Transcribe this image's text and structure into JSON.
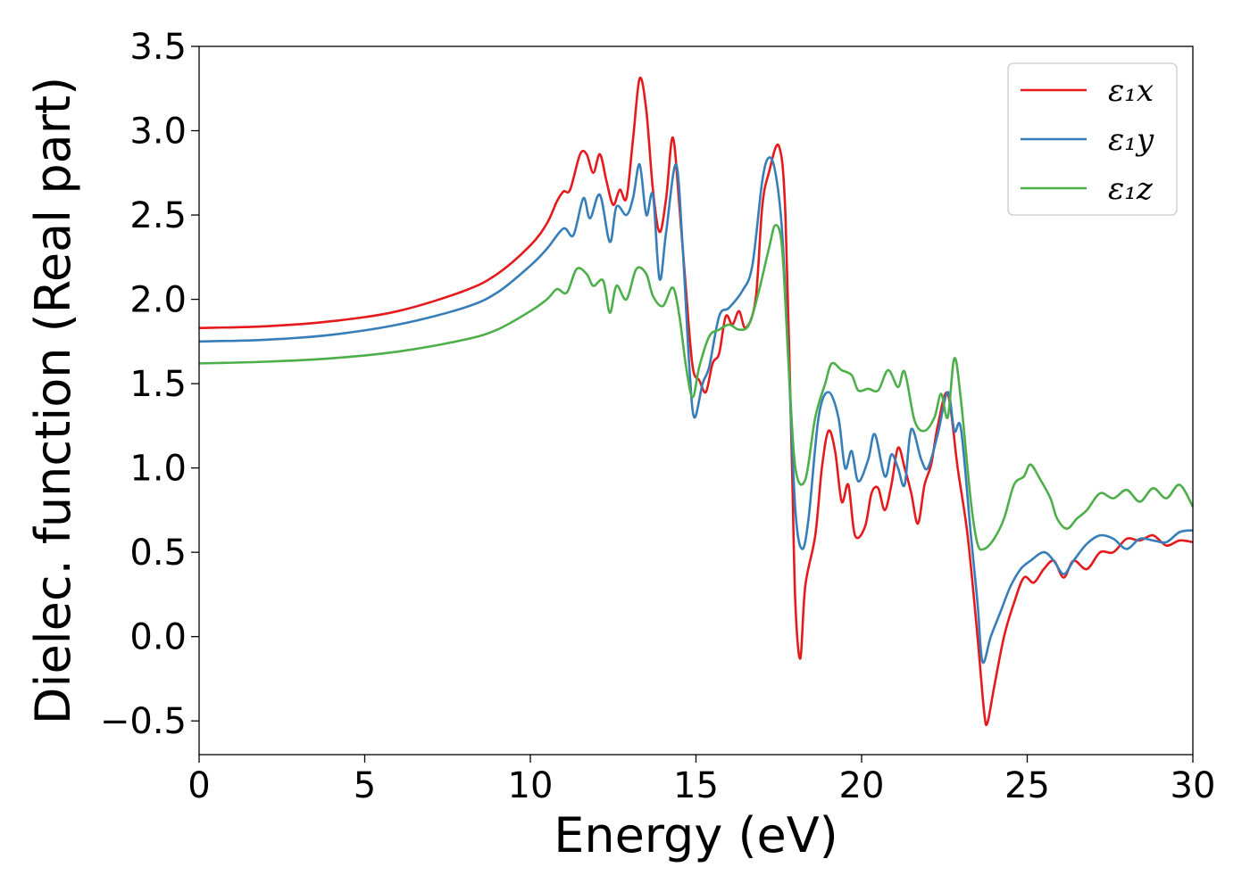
{
  "chart_data": {
    "type": "line",
    "title": "",
    "xlabel": "Energy (eV)",
    "ylabel": "Dielec. function (Real part)",
    "xlim": [
      0,
      30
    ],
    "ylim": [
      -0.7,
      3.5
    ],
    "xticks": [
      0,
      5,
      10,
      15,
      20,
      25,
      30
    ],
    "xtick_labels": [
      "0",
      "5",
      "10",
      "15",
      "20",
      "25",
      "30"
    ],
    "yticks": [
      -0.5,
      0.0,
      0.5,
      1.0,
      1.5,
      2.0,
      2.5,
      3.0,
      3.5
    ],
    "ytick_labels": [
      "−0.5",
      "0.0",
      "0.5",
      "1.0",
      "1.5",
      "2.0",
      "2.5",
      "3.0",
      "3.5"
    ],
    "grid": false,
    "legend_position": "top-right",
    "series": [
      {
        "name": "ε₁x",
        "color": "#e41a1c",
        "points": [
          [
            0,
            1.83
          ],
          [
            2,
            1.84
          ],
          [
            4,
            1.87
          ],
          [
            6,
            1.93
          ],
          [
            8,
            2.05
          ],
          [
            9,
            2.15
          ],
          [
            10,
            2.32
          ],
          [
            10.5,
            2.45
          ],
          [
            10.8,
            2.58
          ],
          [
            11,
            2.64
          ],
          [
            11.2,
            2.65
          ],
          [
            11.5,
            2.86
          ],
          [
            11.7,
            2.86
          ],
          [
            11.9,
            2.75
          ],
          [
            12.1,
            2.86
          ],
          [
            12.3,
            2.7
          ],
          [
            12.5,
            2.56
          ],
          [
            12.7,
            2.65
          ],
          [
            12.9,
            2.6
          ],
          [
            13.1,
            2.95
          ],
          [
            13.3,
            3.31
          ],
          [
            13.5,
            3.12
          ],
          [
            13.7,
            2.65
          ],
          [
            13.9,
            2.4
          ],
          [
            14.1,
            2.6
          ],
          [
            14.3,
            2.96
          ],
          [
            14.5,
            2.55
          ],
          [
            14.7,
            2.05
          ],
          [
            14.9,
            1.6
          ],
          [
            15.1,
            1.52
          ],
          [
            15.3,
            1.45
          ],
          [
            15.5,
            1.62
          ],
          [
            15.7,
            1.68
          ],
          [
            15.9,
            1.9
          ],
          [
            16.1,
            1.85
          ],
          [
            16.3,
            1.93
          ],
          [
            16.5,
            1.83
          ],
          [
            16.8,
            2.0
          ],
          [
            17.0,
            2.55
          ],
          [
            17.2,
            2.75
          ],
          [
            17.5,
            2.91
          ],
          [
            17.7,
            2.5
          ],
          [
            17.9,
            1.0
          ],
          [
            18.0,
            0.2
          ],
          [
            18.15,
            -0.13
          ],
          [
            18.3,
            0.3
          ],
          [
            18.6,
            0.6
          ],
          [
            18.8,
            1.0
          ],
          [
            19.0,
            1.22
          ],
          [
            19.2,
            1.1
          ],
          [
            19.4,
            0.8
          ],
          [
            19.6,
            0.9
          ],
          [
            19.8,
            0.6
          ],
          [
            20.1,
            0.65
          ],
          [
            20.3,
            0.85
          ],
          [
            20.5,
            0.88
          ],
          [
            20.7,
            0.75
          ],
          [
            20.9,
            0.9
          ],
          [
            21.1,
            1.12
          ],
          [
            21.3,
            1.0
          ],
          [
            21.5,
            0.85
          ],
          [
            21.7,
            0.67
          ],
          [
            21.9,
            0.9
          ],
          [
            22.1,
            1.02
          ],
          [
            22.3,
            1.25
          ],
          [
            22.6,
            1.44
          ],
          [
            22.9,
            1.0
          ],
          [
            23.2,
            0.6
          ],
          [
            23.5,
            0.0
          ],
          [
            23.7,
            -0.45
          ],
          [
            23.8,
            -0.51
          ],
          [
            24.0,
            -0.3
          ],
          [
            24.3,
            0.0
          ],
          [
            24.6,
            0.2
          ],
          [
            24.9,
            0.35
          ],
          [
            25.2,
            0.32
          ],
          [
            25.5,
            0.4
          ],
          [
            25.8,
            0.45
          ],
          [
            26.1,
            0.35
          ],
          [
            26.4,
            0.45
          ],
          [
            26.8,
            0.4
          ],
          [
            27.2,
            0.5
          ],
          [
            27.6,
            0.5
          ],
          [
            28.0,
            0.58
          ],
          [
            28.4,
            0.57
          ],
          [
            28.8,
            0.6
          ],
          [
            29.2,
            0.54
          ],
          [
            29.6,
            0.57
          ],
          [
            30,
            0.56
          ]
        ]
      },
      {
        "name": "ε₁y",
        "color": "#377eb8",
        "points": [
          [
            0,
            1.75
          ],
          [
            2,
            1.76
          ],
          [
            4,
            1.79
          ],
          [
            6,
            1.85
          ],
          [
            8,
            1.95
          ],
          [
            9,
            2.04
          ],
          [
            10,
            2.2
          ],
          [
            10.5,
            2.3
          ],
          [
            11,
            2.42
          ],
          [
            11.3,
            2.38
          ],
          [
            11.6,
            2.6
          ],
          [
            11.8,
            2.48
          ],
          [
            12.1,
            2.62
          ],
          [
            12.4,
            2.34
          ],
          [
            12.6,
            2.55
          ],
          [
            12.9,
            2.5
          ],
          [
            13.1,
            2.6
          ],
          [
            13.3,
            2.8
          ],
          [
            13.5,
            2.5
          ],
          [
            13.7,
            2.62
          ],
          [
            13.9,
            2.12
          ],
          [
            14.1,
            2.4
          ],
          [
            14.4,
            2.8
          ],
          [
            14.6,
            2.3
          ],
          [
            14.8,
            1.6
          ],
          [
            14.95,
            1.3
          ],
          [
            15.2,
            1.5
          ],
          [
            15.4,
            1.6
          ],
          [
            15.7,
            1.9
          ],
          [
            16.0,
            1.95
          ],
          [
            16.4,
            2.05
          ],
          [
            16.7,
            2.2
          ],
          [
            17.0,
            2.7
          ],
          [
            17.2,
            2.84
          ],
          [
            17.4,
            2.75
          ],
          [
            17.6,
            2.4
          ],
          [
            17.8,
            1.6
          ],
          [
            18.0,
            0.75
          ],
          [
            18.2,
            0.52
          ],
          [
            18.4,
            0.7
          ],
          [
            18.7,
            1.3
          ],
          [
            19.0,
            1.45
          ],
          [
            19.3,
            1.3
          ],
          [
            19.5,
            1.0
          ],
          [
            19.7,
            1.1
          ],
          [
            19.9,
            0.92
          ],
          [
            20.2,
            1.05
          ],
          [
            20.4,
            1.2
          ],
          [
            20.7,
            0.95
          ],
          [
            20.9,
            1.08
          ],
          [
            21.1,
            1.0
          ],
          [
            21.3,
            0.9
          ],
          [
            21.5,
            1.23
          ],
          [
            21.8,
            1.05
          ],
          [
            22.0,
            1.0
          ],
          [
            22.3,
            1.2
          ],
          [
            22.6,
            1.45
          ],
          [
            22.8,
            1.22
          ],
          [
            23.0,
            1.23
          ],
          [
            23.3,
            0.6
          ],
          [
            23.5,
            0.2
          ],
          [
            23.65,
            -0.15
          ],
          [
            23.9,
            0.0
          ],
          [
            24.2,
            0.15
          ],
          [
            24.5,
            0.3
          ],
          [
            24.8,
            0.4
          ],
          [
            25.1,
            0.45
          ],
          [
            25.5,
            0.5
          ],
          [
            25.8,
            0.45
          ],
          [
            26.1,
            0.37
          ],
          [
            26.4,
            0.45
          ],
          [
            26.8,
            0.55
          ],
          [
            27.2,
            0.6
          ],
          [
            27.6,
            0.58
          ],
          [
            28.0,
            0.52
          ],
          [
            28.4,
            0.58
          ],
          [
            28.8,
            0.57
          ],
          [
            29.2,
            0.56
          ],
          [
            29.6,
            0.62
          ],
          [
            30,
            0.63
          ]
        ]
      },
      {
        "name": "ε₁z",
        "color": "#4daf4a",
        "points": [
          [
            0,
            1.62
          ],
          [
            2,
            1.63
          ],
          [
            4,
            1.65
          ],
          [
            6,
            1.69
          ],
          [
            8,
            1.76
          ],
          [
            9,
            1.82
          ],
          [
            10,
            1.93
          ],
          [
            10.5,
            2.0
          ],
          [
            10.8,
            2.06
          ],
          [
            11.1,
            2.04
          ],
          [
            11.4,
            2.18
          ],
          [
            11.7,
            2.15
          ],
          [
            11.9,
            2.08
          ],
          [
            12.2,
            2.11
          ],
          [
            12.4,
            1.92
          ],
          [
            12.6,
            2.08
          ],
          [
            12.9,
            2.0
          ],
          [
            13.2,
            2.18
          ],
          [
            13.5,
            2.15
          ],
          [
            13.7,
            2.02
          ],
          [
            14.0,
            1.96
          ],
          [
            14.3,
            2.07
          ],
          [
            14.5,
            1.9
          ],
          [
            14.7,
            1.6
          ],
          [
            14.9,
            1.42
          ],
          [
            15.1,
            1.6
          ],
          [
            15.4,
            1.78
          ],
          [
            15.7,
            1.82
          ],
          [
            16.0,
            1.85
          ],
          [
            16.3,
            1.82
          ],
          [
            16.6,
            1.85
          ],
          [
            16.9,
            2.05
          ],
          [
            17.2,
            2.3
          ],
          [
            17.4,
            2.44
          ],
          [
            17.6,
            2.3
          ],
          [
            17.8,
            1.6
          ],
          [
            18.0,
            1.0
          ],
          [
            18.3,
            0.93
          ],
          [
            18.6,
            1.3
          ],
          [
            18.9,
            1.5
          ],
          [
            19.1,
            1.62
          ],
          [
            19.4,
            1.58
          ],
          [
            19.7,
            1.55
          ],
          [
            19.9,
            1.46
          ],
          [
            20.2,
            1.47
          ],
          [
            20.5,
            1.46
          ],
          [
            20.8,
            1.58
          ],
          [
            21.1,
            1.48
          ],
          [
            21.3,
            1.57
          ],
          [
            21.6,
            1.28
          ],
          [
            21.9,
            1.22
          ],
          [
            22.2,
            1.3
          ],
          [
            22.4,
            1.44
          ],
          [
            22.6,
            1.3
          ],
          [
            22.8,
            1.65
          ],
          [
            23.0,
            1.4
          ],
          [
            23.3,
            0.8
          ],
          [
            23.5,
            0.55
          ],
          [
            23.7,
            0.52
          ],
          [
            24.0,
            0.58
          ],
          [
            24.3,
            0.7
          ],
          [
            24.6,
            0.9
          ],
          [
            24.9,
            0.95
          ],
          [
            25.1,
            1.02
          ],
          [
            25.4,
            0.93
          ],
          [
            25.7,
            0.82
          ],
          [
            25.9,
            0.7
          ],
          [
            26.2,
            0.64
          ],
          [
            26.5,
            0.7
          ],
          [
            26.8,
            0.75
          ],
          [
            27.2,
            0.85
          ],
          [
            27.6,
            0.82
          ],
          [
            28.0,
            0.87
          ],
          [
            28.4,
            0.8
          ],
          [
            28.8,
            0.88
          ],
          [
            29.2,
            0.82
          ],
          [
            29.6,
            0.9
          ],
          [
            30,
            0.77
          ]
        ]
      }
    ]
  }
}
